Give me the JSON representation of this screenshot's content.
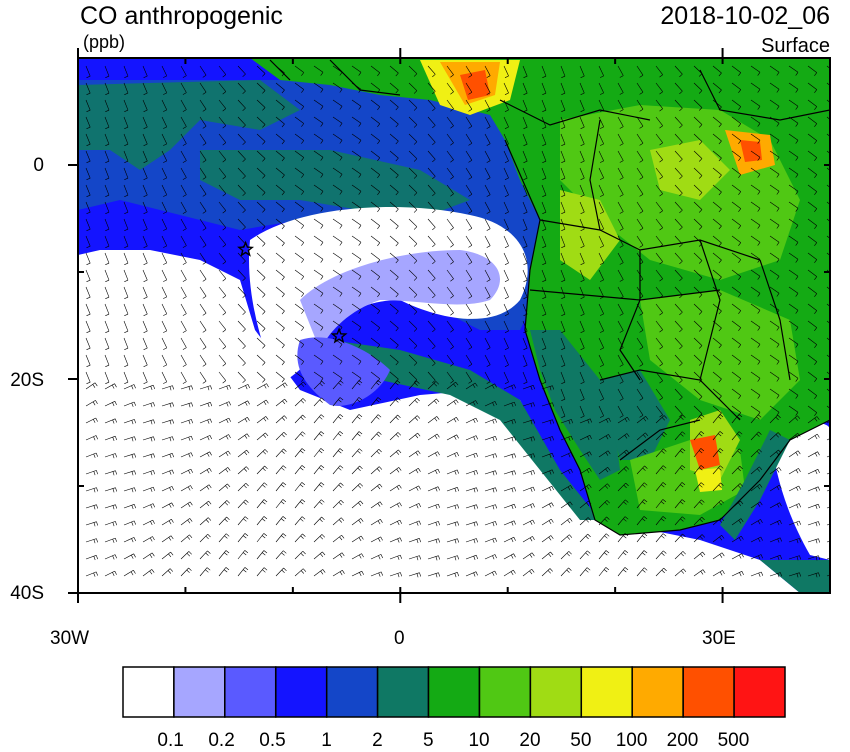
{
  "header": {
    "title": "CO anthropogenic",
    "units": "(ppb)",
    "datetime": "2018-10-02_06",
    "level": "Surface"
  },
  "axes": {
    "y_ticks": [
      {
        "value": 0,
        "label": "0"
      },
      {
        "value": -20,
        "label": "20S"
      },
      {
        "value": -40,
        "label": "40S"
      }
    ],
    "x_ticks": [
      {
        "value": -30,
        "label": "30W"
      },
      {
        "value": 0,
        "label": "0"
      },
      {
        "value": 30,
        "label": "30E"
      }
    ],
    "lon_range": [
      -30,
      40
    ],
    "lat_range": [
      -40,
      10
    ]
  },
  "colorbar": {
    "colors": [
      "#ffffff",
      "#a6a6ff",
      "#5a5aff",
      "#1414ff",
      "#1446c8",
      "#0f7864",
      "#14aa14",
      "#50c814",
      "#a0dc14",
      "#f0f014",
      "#ffaa00",
      "#ff5000",
      "#ff1414"
    ],
    "labels": [
      "0.1",
      "0.2",
      "0.5",
      "1",
      "2",
      "5",
      "10",
      "20",
      "50",
      "100",
      "200",
      "500"
    ]
  },
  "markers": [
    {
      "name": "star",
      "lon": -14.4,
      "lat": -7.9
    },
    {
      "name": "star",
      "lon": -5.7,
      "lat": -16.0
    }
  ]
}
